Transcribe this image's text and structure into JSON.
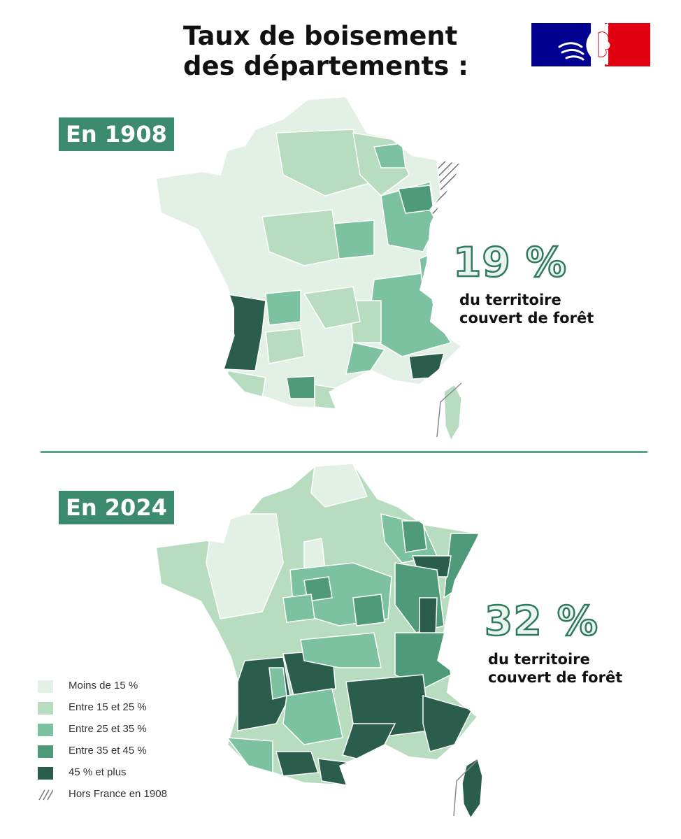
{
  "title": {
    "line1": "Taux de boisement",
    "line2": "des départements :"
  },
  "map_1908": {
    "badge": "En 1908",
    "percent": "19 %",
    "caption_line1": "du territoire",
    "caption_line2": "couvert de forêt"
  },
  "map_2024": {
    "badge": "En 2024",
    "percent": "32 %",
    "caption_line1": "du territoire",
    "caption_line2": "couvert de forêt"
  },
  "legend": [
    {
      "label": "Moins de 15 %",
      "color": "#e3f0e5"
    },
    {
      "label": "Entre 15 et 25 %",
      "color": "#b8dcc0"
    },
    {
      "label": "Entre 25 et 35 %",
      "color": "#7cc2a1"
    },
    {
      "label": "Entre 35 et 45 %",
      "color": "#4e9a79"
    },
    {
      "label": "45 % et plus",
      "color": "#2a5d4c"
    },
    {
      "label": "Hors France en 1908",
      "color": "hatched"
    }
  ],
  "colors": {
    "badge": "#3d8b6e",
    "divider": "#5aa38a",
    "percent_fill": "#e8f4ec",
    "percent_outline": "#2f7a5c",
    "marianne_blue": "#000091",
    "marianne_red": "#e1000f"
  },
  "icons": {
    "logo": "marianne-logo-icon"
  }
}
